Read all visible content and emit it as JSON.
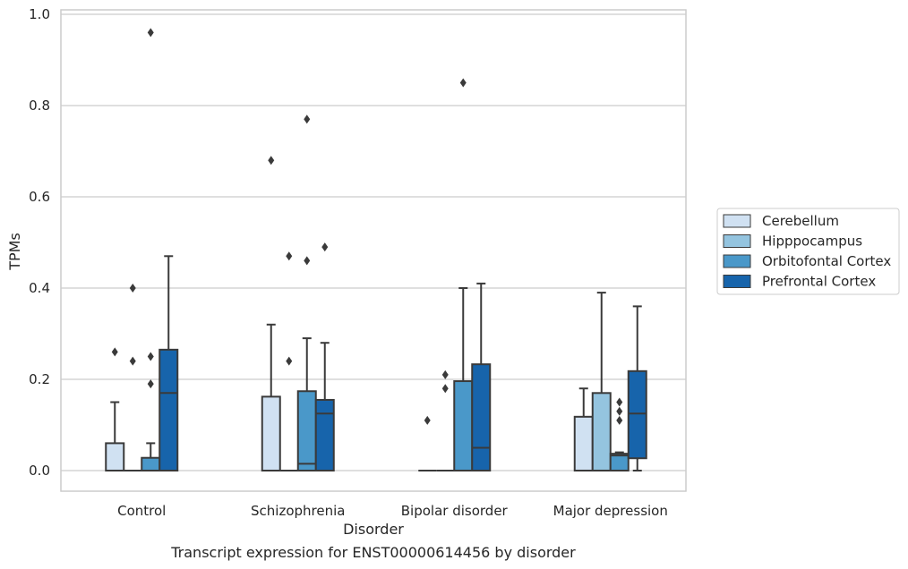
{
  "chart_data": {
    "type": "boxplot",
    "caption": "Transcript expression for ENST00000614456 by disorder",
    "xlabel": "Disorder",
    "ylabel": "TPMs",
    "ylim": [
      -0.045,
      1.01
    ],
    "yticks": [
      0.0,
      0.2,
      0.4,
      0.6,
      0.8,
      1.0
    ],
    "ytick_labels": [
      "0.0",
      "0.2",
      "0.4",
      "0.6",
      "0.8",
      "1.0"
    ],
    "grid": "horizontal",
    "legend_position": "right",
    "categories": [
      "Control",
      "Schizophrenia",
      "Bipolar disorder",
      "Major depression"
    ],
    "series": [
      {
        "name": "Cerebellum",
        "color": "#d0e1f2",
        "boxes": [
          {
            "q1": 0,
            "median": 0,
            "q3": 0.06,
            "whisker_low": 0,
            "whisker_high": 0.15,
            "outliers": [
              0.26
            ]
          },
          {
            "q1": 0,
            "median": 0,
            "q3": 0.162,
            "whisker_low": 0,
            "whisker_high": 0.32,
            "outliers": [
              0.68
            ]
          },
          {
            "q1": 0,
            "median": 0,
            "q3": 0,
            "whisker_low": 0,
            "whisker_high": 0,
            "outliers": [
              0.11
            ]
          },
          {
            "q1": 0,
            "median": 0,
            "q3": 0.118,
            "whisker_low": 0,
            "whisker_high": 0.18,
            "outliers": []
          }
        ]
      },
      {
        "name": "Hipppocampus",
        "color": "#94c4df",
        "boxes": [
          {
            "q1": 0,
            "median": 0,
            "q3": 0,
            "whisker_low": 0,
            "whisker_high": 0,
            "outliers": [
              0.24,
              0.4
            ]
          },
          {
            "q1": 0,
            "median": 0,
            "q3": 0,
            "whisker_low": 0,
            "whisker_high": 0,
            "outliers": [
              0.24,
              0.47
            ]
          },
          {
            "q1": 0,
            "median": 0,
            "q3": 0,
            "whisker_low": 0,
            "whisker_high": 0,
            "outliers": [
              0.18,
              0.21
            ]
          },
          {
            "q1": 0,
            "median": 0,
            "q3": 0.17,
            "whisker_low": 0,
            "whisker_high": 0.39,
            "outliers": []
          }
        ]
      },
      {
        "name": "Orbitofontal Cortex",
        "color": "#4a98c9",
        "boxes": [
          {
            "q1": 0,
            "median": 0,
            "q3": 0.028,
            "whisker_low": 0,
            "whisker_high": 0.06,
            "outliers": [
              0.19,
              0.25,
              0.96
            ]
          },
          {
            "q1": 0,
            "median": 0.015,
            "q3": 0.174,
            "whisker_low": 0,
            "whisker_high": 0.29,
            "outliers": [
              0.46,
              0.77
            ]
          },
          {
            "q1": 0,
            "median": 0,
            "q3": 0.196,
            "whisker_low": 0,
            "whisker_high": 0.4,
            "outliers": [
              0.85
            ]
          },
          {
            "q1": 0,
            "median": 0.033,
            "q3": 0.037,
            "whisker_low": 0,
            "whisker_high": 0.04,
            "outliers": [
              0.11,
              0.13,
              0.15
            ]
          }
        ]
      },
      {
        "name": "Prefrontal Cortex",
        "color": "#1764ab",
        "boxes": [
          {
            "q1": 0,
            "median": 0.17,
            "q3": 0.265,
            "whisker_low": 0,
            "whisker_high": 0.47,
            "outliers": []
          },
          {
            "q1": 0,
            "median": 0.125,
            "q3": 0.155,
            "whisker_low": 0,
            "whisker_high": 0.28,
            "outliers": [
              0.49
            ]
          },
          {
            "q1": 0,
            "median": 0.05,
            "q3": 0.233,
            "whisker_low": 0,
            "whisker_high": 0.41,
            "outliers": []
          },
          {
            "q1": 0.027,
            "median": 0.125,
            "q3": 0.218,
            "whisker_low": 0,
            "whisker_high": 0.36,
            "outliers": []
          }
        ]
      }
    ]
  }
}
